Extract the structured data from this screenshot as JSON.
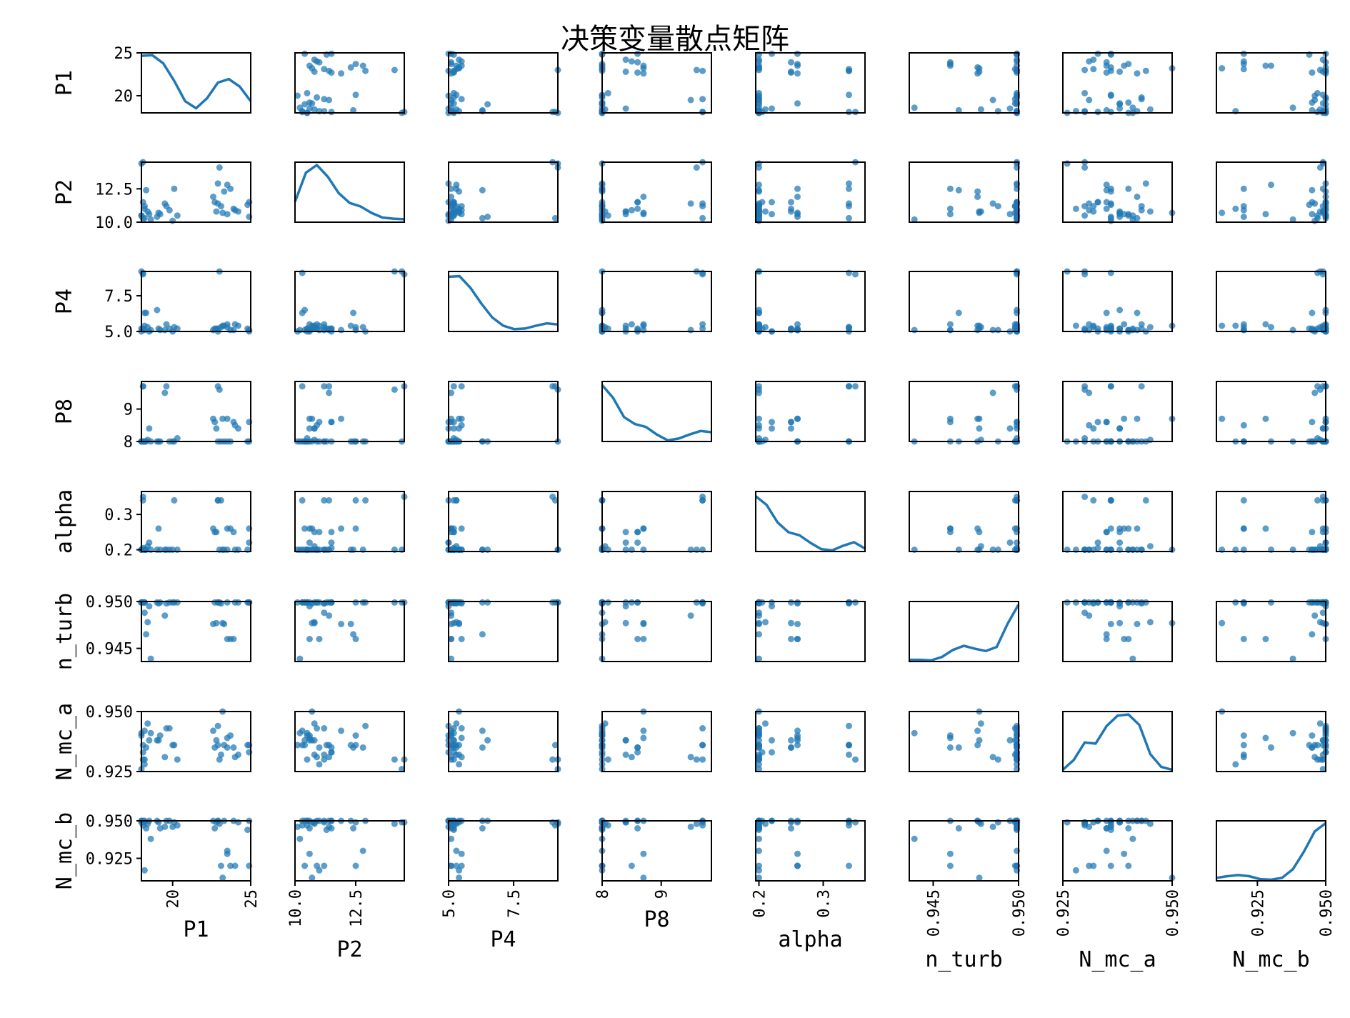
{
  "chart_data": {
    "type": "scatter",
    "subtype": "scatter-matrix",
    "title": "决策变量散点矩阵",
    "diagonal": "kde",
    "marker_color": "#1f77b4",
    "variables": [
      {
        "name": "P1",
        "range": [
          18.0,
          25.0
        ],
        "yticks": [
          20,
          25
        ],
        "xticks": [
          "20",
          "25"
        ],
        "ytick_labels": [
          "20",
          "25"
        ]
      },
      {
        "name": "P2",
        "range": [
          10.0,
          14.5
        ],
        "yticks": [
          10.0,
          12.5
        ],
        "xticks": [
          "10.0",
          "12.5"
        ],
        "ytick_labels": [
          "10.0",
          "12.5"
        ]
      },
      {
        "name": "P4",
        "range": [
          5.0,
          9.2
        ],
        "yticks": [
          5.0,
          7.5
        ],
        "xticks": [
          "5.0",
          "7.5"
        ],
        "ytick_labels": [
          "5.0",
          "7.5"
        ]
      },
      {
        "name": "P8",
        "range": [
          8.0,
          9.85
        ],
        "yticks": [
          8,
          9
        ],
        "xticks": [
          "8",
          "9"
        ],
        "ytick_labels": [
          "8",
          "9"
        ]
      },
      {
        "name": "alpha",
        "range": [
          0.195,
          0.365
        ],
        "yticks": [
          0.2,
          0.3
        ],
        "xticks": [
          "0.2",
          "0.3"
        ],
        "ytick_labels": [
          "0.2",
          "0.3"
        ]
      },
      {
        "name": "n_turb",
        "range": [
          0.9436,
          0.95
        ],
        "yticks": [
          0.945,
          0.95
        ],
        "xticks": [
          "0.945",
          "0.950"
        ],
        "ytick_labels": [
          "0.945",
          "0.950"
        ]
      },
      {
        "name": "N_mc_a",
        "range": [
          0.925,
          0.95
        ],
        "yticks": [
          0.925,
          0.95
        ],
        "xticks": [
          "0.925",
          "0.950"
        ],
        "ytick_labels": [
          "0.925",
          "0.950"
        ]
      },
      {
        "name": "N_mc_b",
        "range": [
          0.91,
          0.95
        ],
        "yticks": [
          0.925,
          0.95
        ],
        "xticks": [
          "0.925",
          "0.950"
        ],
        "ytick_labels": [
          "0.925",
          "0.950"
        ]
      }
    ],
    "samples": [
      [
        18.1,
        10.3,
        9.1,
        9.7,
        0.34,
        0.9499,
        0.936,
        0.947
      ],
      [
        18.2,
        11.2,
        5.1,
        8.0,
        0.2,
        0.9488,
        0.93,
        0.949
      ],
      [
        18.0,
        10.5,
        5.0,
        8.0,
        0.2,
        0.9499,
        0.94,
        0.95
      ],
      [
        18.4,
        10.8,
        5.3,
        8.05,
        0.21,
        0.9478,
        0.945,
        0.948
      ],
      [
        18.3,
        12.4,
        6.3,
        8.0,
        0.2,
        0.9465,
        0.935,
        0.945
      ],
      [
        18.1,
        11.5,
        5.2,
        8.0,
        0.205,
        0.9499,
        0.933,
        0.95
      ],
      [
        18.6,
        10.2,
        5.1,
        8.0,
        0.2,
        0.9439,
        0.941,
        0.938
      ],
      [
        18.2,
        11.0,
        5.4,
        8.0,
        0.2,
        0.9499,
        0.928,
        0.917
      ],
      [
        18.0,
        14.4,
        9.2,
        8.0,
        0.2,
        0.9499,
        0.926,
        0.949
      ],
      [
        18.5,
        10.6,
        5.0,
        8.4,
        0.22,
        0.9495,
        0.938,
        0.95
      ],
      [
        19.1,
        10.7,
        5.2,
        8.0,
        0.26,
        0.9498,
        0.938,
        0.949
      ],
      [
        19.5,
        11.4,
        5.1,
        9.5,
        0.2,
        0.9485,
        0.931,
        0.946
      ],
      [
        19.8,
        10.9,
        5.2,
        8.0,
        0.2,
        0.9499,
        0.943,
        0.95
      ],
      [
        20.0,
        10.1,
        5.0,
        8.0,
        0.2,
        0.9499,
        0.936,
        0.946
      ],
      [
        20.1,
        12.5,
        5.3,
        8.0,
        0.34,
        0.9499,
        0.936,
        0.949
      ],
      [
        19.6,
        11.2,
        5.5,
        9.7,
        0.2,
        0.9498,
        0.943,
        0.95
      ],
      [
        19.2,
        10.6,
        5.1,
        8.0,
        0.2,
        0.9499,
        0.94,
        0.945
      ],
      [
        20.3,
        10.5,
        5.2,
        8.1,
        0.2,
        0.9499,
        0.93,
        0.947
      ],
      [
        22.6,
        11.9,
        5.1,
        8.7,
        0.26,
        0.9476,
        0.942,
        0.95
      ],
      [
        22.8,
        10.8,
        5.2,
        8.4,
        0.25,
        0.9477,
        0.938,
        0.949
      ],
      [
        22.9,
        12.9,
        5.0,
        8.0,
        0.34,
        0.9499,
        0.944,
        0.95
      ],
      [
        23.1,
        11.2,
        5.3,
        8.0,
        0.34,
        0.9498,
        0.932,
        0.92
      ],
      [
        23.2,
        10.7,
        5.4,
        8.7,
        0.2,
        0.9477,
        0.95,
        0.912
      ],
      [
        23.3,
        12.3,
        5.4,
        8.0,
        0.2,
        0.9476,
        0.936,
        0.95
      ],
      [
        22.7,
        11.5,
        5.2,
        8.6,
        0.25,
        0.9499,
        0.935,
        0.945
      ],
      [
        23.5,
        10.6,
        5.5,
        8.7,
        0.26,
        0.946,
        0.939,
        0.928
      ],
      [
        23.7,
        12.5,
        5.1,
        8.0,
        0.26,
        0.946,
        0.94,
        0.92
      ],
      [
        23.9,
        11.0,
        5.1,
        8.6,
        0.25,
        0.946,
        0.935,
        0.95
      ],
      [
        24.0,
        10.9,
        5.5,
        8.5,
        0.2,
        0.9499,
        0.931,
        0.92
      ],
      [
        23.5,
        12.8,
        5.3,
        8.0,
        0.2,
        0.9499,
        0.935,
        0.93
      ],
      [
        24.2,
        10.8,
        5.4,
        8.4,
        0.2,
        0.9499,
        0.932,
        0.949
      ],
      [
        24.8,
        11.3,
        5.2,
        8.0,
        0.2,
        0.9499,
        0.936,
        0.944
      ],
      [
        24.9,
        10.4,
        5.1,
        8.0,
        0.26,
        0.9499,
        0.936,
        0.92
      ],
      [
        24.9,
        11.5,
        5.0,
        8.6,
        0.22,
        0.9499,
        0.933,
        0.95
      ],
      [
        23.0,
        14.1,
        9.2,
        9.6,
        0.2,
        0.9499,
        0.93,
        0.948
      ],
      [
        22.9,
        11.4,
        5.2,
        9.7,
        0.34,
        0.9499,
        0.936,
        0.95
      ],
      [
        19.0,
        10.4,
        6.5,
        8.0,
        0.2,
        0.9499,
        0.938,
        0.95
      ],
      [
        18.0,
        10.5,
        5.2,
        8.0,
        0.2,
        0.9499,
        0.941,
        0.95
      ],
      [
        18.1,
        14.5,
        9.0,
        9.7,
        0.35,
        0.9499,
        0.93,
        0.949
      ],
      [
        18.2,
        10.3,
        6.3,
        8.0,
        0.2,
        0.9499,
        0.942,
        0.95
      ]
    ],
    "kde_curves": [
      [
        0.98,
        0.99,
        0.85,
        0.55,
        0.2,
        0.08,
        0.25,
        0.52,
        0.58,
        0.45,
        0.2
      ],
      [
        0.35,
        0.85,
        0.98,
        0.78,
        0.5,
        0.33,
        0.27,
        0.16,
        0.08,
        0.06,
        0.05
      ],
      [
        0.94,
        0.95,
        0.75,
        0.48,
        0.24,
        0.1,
        0.04,
        0.05,
        0.1,
        0.14,
        0.12
      ],
      [
        0.97,
        0.75,
        0.42,
        0.3,
        0.25,
        0.12,
        0.02,
        0.05,
        0.12,
        0.18,
        0.16
      ],
      [
        0.95,
        0.8,
        0.5,
        0.33,
        0.28,
        0.15,
        0.04,
        0.02,
        0.1,
        0.16,
        0.05
      ],
      [
        0.03,
        0.03,
        0.02,
        0.08,
        0.2,
        0.27,
        0.22,
        0.18,
        0.25,
        0.65,
        0.98
      ],
      [
        0.03,
        0.2,
        0.5,
        0.48,
        0.78,
        0.96,
        0.98,
        0.8,
        0.3,
        0.08,
        0.03
      ],
      [
        0.05,
        0.08,
        0.1,
        0.08,
        0.03,
        0.02,
        0.05,
        0.2,
        0.5,
        0.85,
        0.99
      ]
    ]
  }
}
